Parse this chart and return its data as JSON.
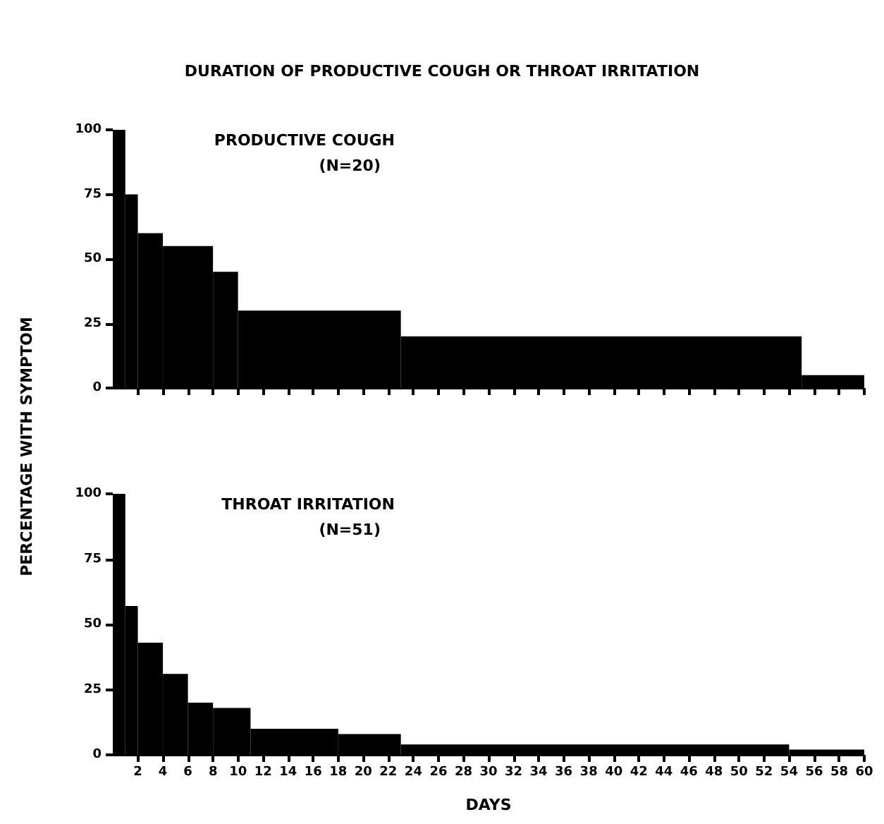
{
  "chart_data": [
    {
      "type": "histogram",
      "title": "DURATION OF PRODUCTIVE COUGH OR THROAT IRRITATION",
      "ylabel": "PERCENTAGE WITH SYMPTOM",
      "annotations": [
        "PRODUCTIVE COUGH",
        "(N=20)"
      ],
      "bins": [
        0,
        1,
        2,
        4,
        8,
        10,
        23,
        55,
        60
      ],
      "values": [
        100,
        75,
        60,
        55,
        45,
        30,
        20,
        5
      ],
      "color": "#000000",
      "xlim": [
        0,
        60
      ],
      "xticks": [
        2,
        4,
        6,
        8,
        10,
        12,
        14,
        16,
        18,
        20,
        22,
        24,
        26,
        28,
        30,
        32,
        34,
        36,
        38,
        40,
        42,
        44,
        46,
        48,
        50,
        52,
        54,
        56,
        58,
        60
      ],
      "ylim": [
        0,
        100
      ],
      "yticks": [
        0,
        25,
        50,
        75,
        100
      ],
      "tick_labels": "y",
      "grid": false
    },
    {
      "type": "histogram",
      "xlabel": "DAYS",
      "annotations": [
        "THROAT IRRITATION",
        "(N=51)"
      ],
      "bins": [
        0,
        1,
        2,
        4,
        6,
        8,
        11,
        18,
        23,
        54,
        60
      ],
      "values": [
        100,
        57,
        43,
        31,
        20,
        18,
        10,
        8,
        4,
        2
      ],
      "color": "#000000",
      "xlim": [
        0,
        60
      ],
      "xticks": [
        2,
        4,
        6,
        8,
        10,
        12,
        14,
        16,
        18,
        20,
        22,
        24,
        26,
        28,
        30,
        32,
        34,
        36,
        38,
        40,
        42,
        44,
        46,
        48,
        50,
        52,
        54,
        56,
        58,
        60
      ],
      "ylim": [
        0,
        100
      ],
      "yticks": [
        0,
        25,
        50,
        75,
        100
      ],
      "grid": false
    }
  ]
}
